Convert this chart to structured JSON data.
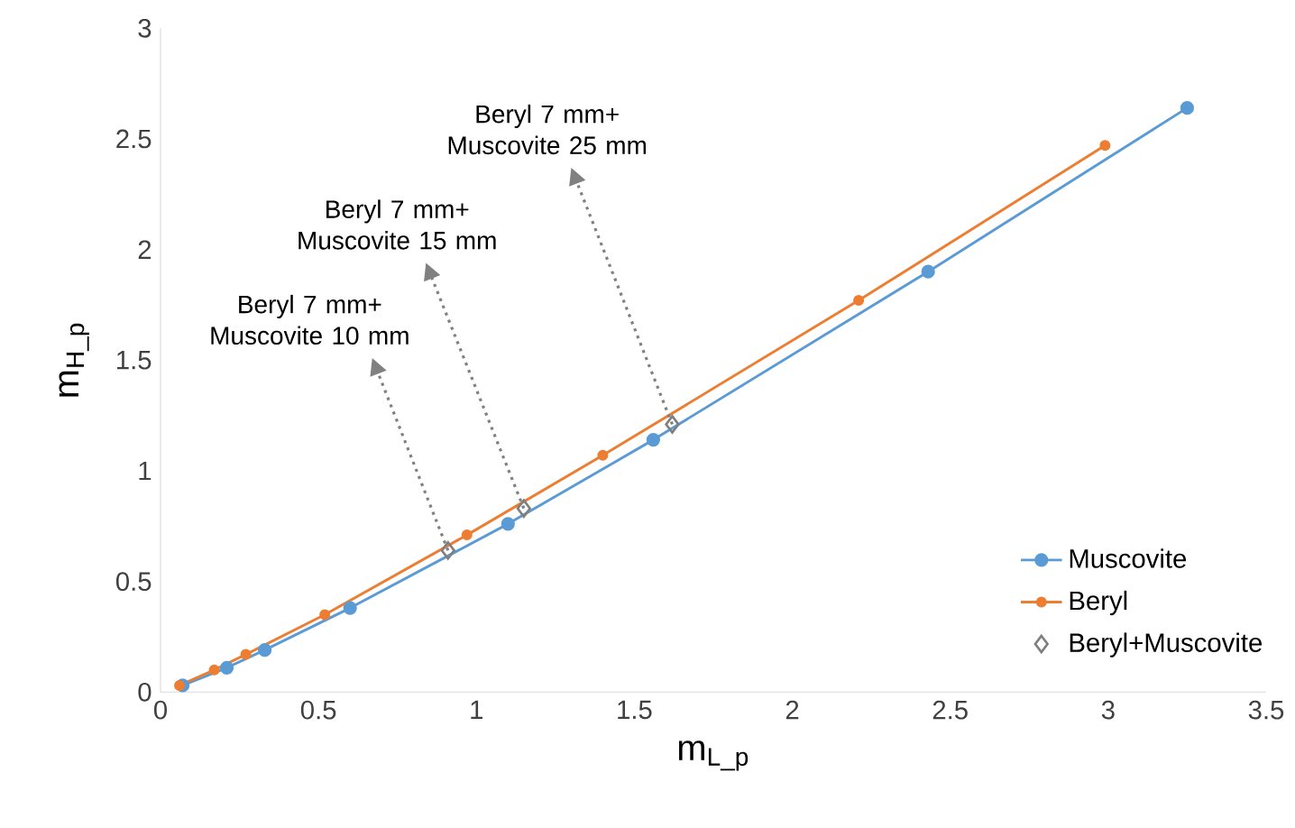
{
  "chart_data": {
    "type": "line",
    "xlabel": "m$_{L_p}$",
    "ylabel": "m$_{H_p}$",
    "xlim": [
      0,
      3.5
    ],
    "xticks": [
      0,
      0.5,
      1,
      1.5,
      2,
      2.5,
      3,
      3.5
    ],
    "ylim": [
      0,
      3
    ],
    "yticks": [
      0,
      0.5,
      1,
      1.5,
      2,
      2.5,
      3
    ],
    "grid": false,
    "legend": "right",
    "marker": "circle",
    "line_style": "solid",
    "series": [
      {
        "name": "Muscovite",
        "color": "#5b9bd5",
        "x": [
          0.07,
          0.21,
          0.33,
          0.6,
          1.1,
          1.56,
          2.43,
          3.25
        ],
        "values": [
          0.03,
          0.11,
          0.19,
          0.38,
          0.76,
          1.14,
          1.9,
          2.64
        ]
      },
      {
        "name": "Beryl",
        "color": "#ed7d31",
        "x": [
          0.06,
          0.17,
          0.27,
          0.52,
          0.97,
          1.4,
          2.21,
          2.99
        ],
        "values": [
          0.03,
          0.1,
          0.17,
          0.35,
          0.71,
          1.07,
          1.77,
          2.47
        ]
      },
      {
        "name": "Beryl+Muscovite",
        "type": "scatter",
        "marker": "diamond",
        "color": "#7f7f7f",
        "x": [
          0.91,
          1.15,
          1.62
        ],
        "values": [
          0.64,
          0.83,
          1.21
        ]
      }
    ],
    "annotations": [
      {
        "text": "Beryl 7 mm+ Muscovite 10 mm",
        "x": 0.91,
        "y": 0.64
      },
      {
        "text": "Beryl 7 mm+ Muscovite 15 mm",
        "x": 1.15,
        "y": 0.83
      },
      {
        "text": "Beryl 7 mm+ Muscovite 25 mm",
        "x": 1.62,
        "y": 1.21
      }
    ]
  }
}
